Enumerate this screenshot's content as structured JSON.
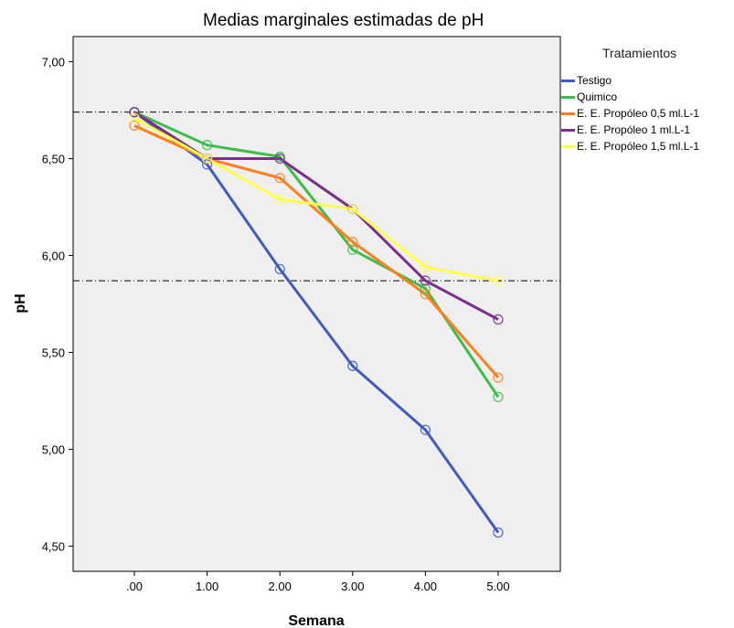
{
  "chart_data": {
    "type": "line",
    "title": "Medias marginales estimadas de pH",
    "xlabel": "Semana",
    "ylabel": "pH",
    "categories": [
      ".00",
      "1.00",
      "2.00",
      "3.00",
      "4.00",
      "5.00"
    ],
    "ylim": [
      4.37,
      7.13
    ],
    "yticks": [
      "4,50",
      "5,00",
      "5,50",
      "6,00",
      "6,50",
      "7,00"
    ],
    "ytick_values": [
      4.5,
      5.0,
      5.5,
      6.0,
      6.5,
      7.0
    ],
    "reference_lines": [
      6.74,
      5.87
    ],
    "grid": false,
    "legend_title": "Tratamientos",
    "legend_position": "right",
    "series": [
      {
        "name": "Testigo",
        "color": "#3f5cbf",
        "values": [
          6.74,
          6.47,
          5.93,
          5.43,
          5.1,
          4.57
        ]
      },
      {
        "name": "Quimico",
        "color": "#3ebd4a",
        "values": [
          6.74,
          6.57,
          6.51,
          6.03,
          5.83,
          5.27
        ]
      },
      {
        "name": "E. E. Propóleo  0,5 ml.L-1",
        "color": "#ff7f1f",
        "values": [
          6.67,
          6.5,
          6.4,
          6.07,
          5.8,
          5.37
        ]
      },
      {
        "name": "E. E. Propóleo 1 ml.L-1",
        "color": "#7b2e8c",
        "values": [
          6.74,
          6.5,
          6.5,
          6.24,
          5.87,
          5.67
        ]
      },
      {
        "name": "E. E. Propóleo 1,5 ml.L-1",
        "color": "#ffff4d",
        "values": [
          6.71,
          6.5,
          6.29,
          6.24,
          5.94,
          5.87
        ]
      }
    ]
  }
}
